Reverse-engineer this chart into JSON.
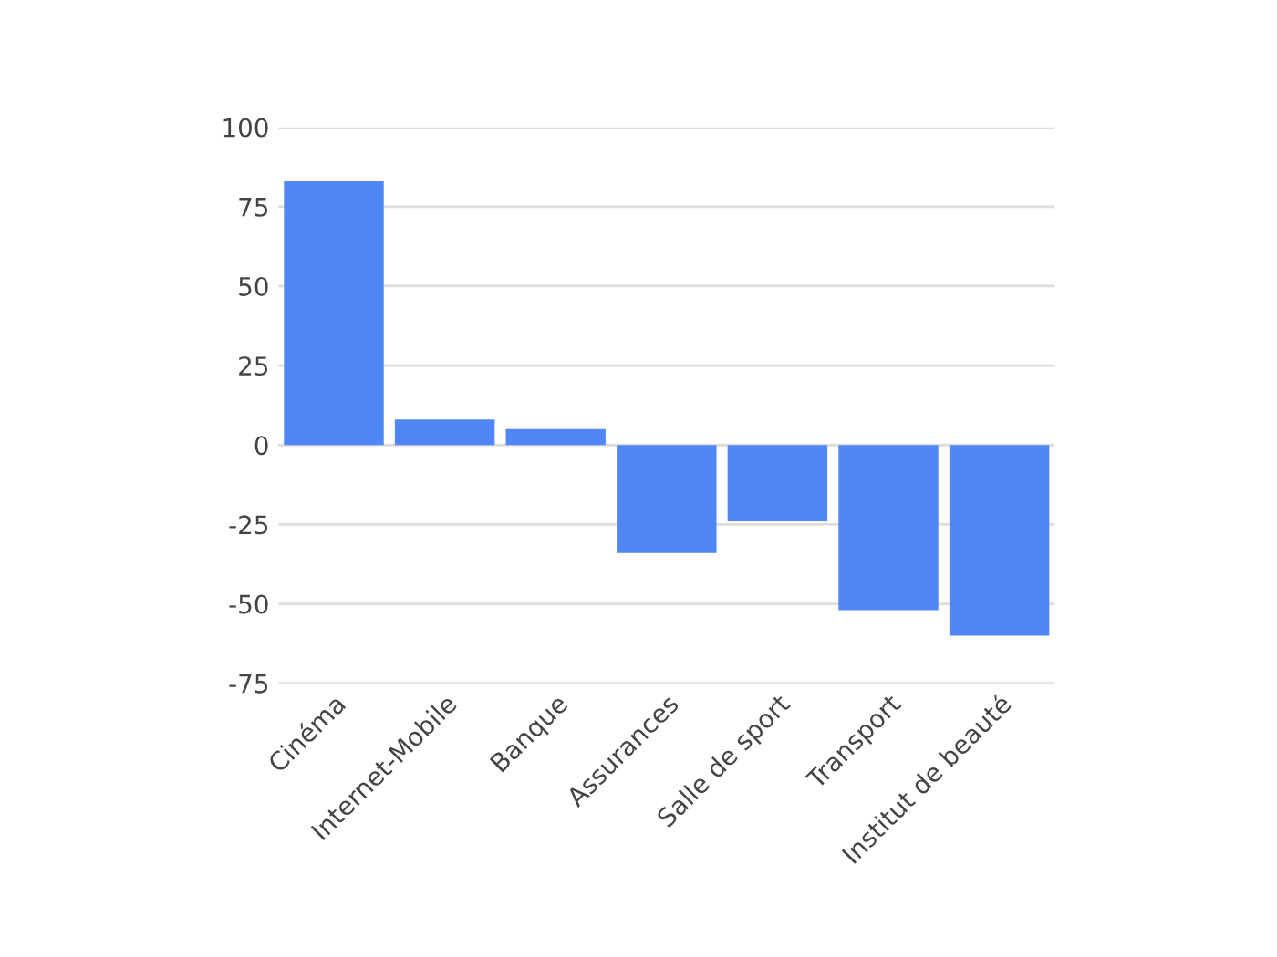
{
  "chart_data": {
    "type": "bar",
    "categories": [
      "Cinéma",
      "Internet-Mobile",
      "Banque",
      "Assurances",
      "Salle de sport",
      "Transport",
      "Institut de beauté"
    ],
    "values": [
      83,
      8,
      5,
      -34,
      -24,
      -52,
      -60
    ],
    "color": "#5086f5",
    "ylim": [
      -75,
      100
    ],
    "yticks": [
      -75,
      -50,
      -25,
      0,
      25,
      50,
      75,
      100
    ],
    "grid": "y"
  }
}
